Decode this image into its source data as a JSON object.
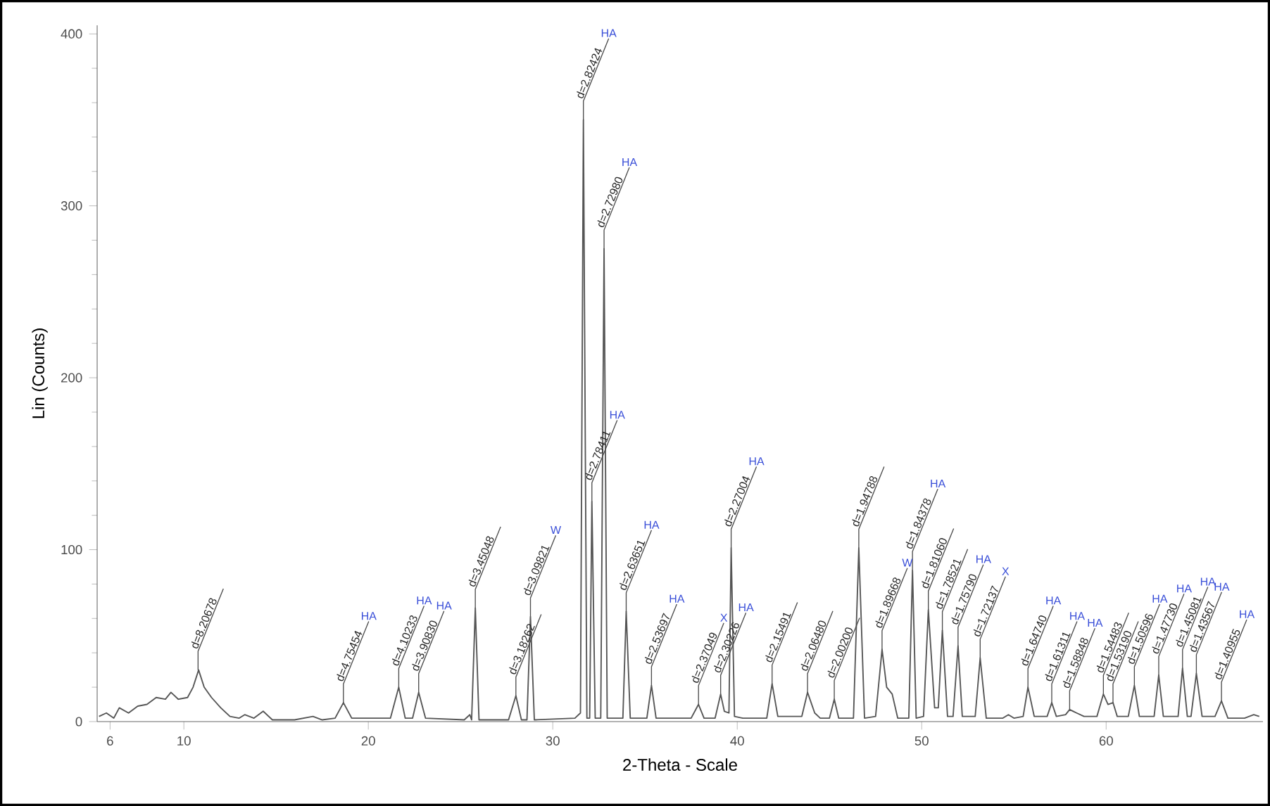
{
  "chart_data": {
    "type": "line",
    "xlabel": "2-Theta - Scale",
    "ylabel": "Lin (Counts)",
    "color": "#555555",
    "xlim": [
      5.3,
      68.5
    ],
    "ylim": [
      0,
      405
    ],
    "xticks": [
      6,
      10,
      20,
      30,
      40,
      50,
      60
    ],
    "yticks": [
      0,
      100,
      200,
      300,
      400
    ],
    "x": [
      5.4,
      5.8,
      6.2,
      6.5,
      7.0,
      7.5,
      8.0,
      8.5,
      9.0,
      9.3,
      9.7,
      10.2,
      10.5,
      10.8,
      11.1,
      11.5,
      12.0,
      12.5,
      13.0,
      13.3,
      13.8,
      14.3,
      14.8,
      16,
      17,
      17.5,
      18.2,
      18.65,
      19.1,
      21.2,
      21.65,
      22.0,
      22.4,
      22.73,
      23.1,
      25.2,
      25.5,
      25.6,
      25.8,
      26.0,
      27.6,
      28.0,
      28.3,
      28.6,
      28.79,
      29.0,
      31.2,
      31.5,
      31.66,
      31.85,
      32.0,
      32.12,
      32.3,
      32.6,
      32.78,
      32.95,
      33.8,
      33.98,
      34.2,
      35.1,
      35.35,
      35.6,
      37.5,
      37.9,
      38.2,
      38.8,
      39.1,
      39.3,
      39.55,
      39.67,
      39.85,
      40.3,
      41.6,
      41.89,
      42.2,
      43.5,
      43.81,
      44.2,
      44.5,
      45.0,
      45.26,
      45.5,
      46.3,
      46.59,
      46.9,
      47.5,
      47.85,
      48.1,
      48.4,
      48.7,
      49.3,
      49.5,
      49.7,
      50.1,
      50.36,
      50.7,
      50.9,
      51.12,
      51.4,
      51.7,
      51.97,
      52.2,
      52.9,
      53.17,
      53.5,
      54.4,
      54.7,
      55.0,
      55.5,
      55.76,
      56.1,
      56.8,
      57.05,
      57.3,
      57.8,
      58.02,
      58.4,
      58.8,
      59.5,
      59.85,
      60.1,
      60.37,
      60.6,
      61.2,
      61.53,
      61.8,
      62.6,
      62.85,
      63.1,
      63.6,
      63.9,
      64.14,
      64.4,
      64.6,
      64.89,
      65.2,
      65.9,
      66.25,
      66.6,
      67.5,
      68.0,
      68.3
    ],
    "values": [
      3,
      5,
      2,
      8,
      5,
      9,
      10,
      14,
      13,
      17,
      13,
      14,
      20,
      30,
      20,
      14,
      8,
      3,
      2,
      4,
      2,
      6,
      1,
      1,
      3,
      1,
      2,
      11,
      2,
      2,
      20,
      2,
      2,
      17,
      2,
      1,
      4,
      1,
      66,
      1,
      1,
      15,
      1,
      1,
      61,
      1,
      2,
      5,
      350,
      2,
      2,
      128,
      2,
      2,
      275,
      2,
      2,
      64,
      2,
      2,
      21,
      2,
      2,
      10,
      2,
      2,
      16,
      6,
      5,
      101,
      3,
      2,
      2,
      22,
      3,
      3,
      17,
      5,
      2,
      2,
      13,
      2,
      2,
      101,
      2,
      3,
      42,
      20,
      16,
      2,
      2,
      88,
      2,
      3,
      65,
      8,
      8,
      53,
      3,
      3,
      44,
      3,
      3,
      37,
      2,
      2,
      4,
      2,
      3,
      20,
      3,
      3,
      11,
      3,
      4,
      7,
      5,
      3,
      3,
      16,
      10,
      11,
      3,
      3,
      21,
      3,
      3,
      27,
      3,
      3,
      3,
      31,
      3,
      3,
      28,
      3,
      3,
      12,
      2,
      2,
      4,
      3
    ],
    "annotations": [
      {
        "text": "d=8.20678",
        "x": 10.77,
        "y": 30
      },
      {
        "text": "d=4.75454",
        "x": 18.65,
        "y": 11
      },
      {
        "text": "HA",
        "x": 18.65,
        "y": 11
      },
      {
        "text": "d=4.10233",
        "x": 21.65,
        "y": 20
      },
      {
        "text": "HA",
        "x": 21.65,
        "y": 20
      },
      {
        "text": "d=3.90830",
        "x": 22.73,
        "y": 17
      },
      {
        "text": "HA",
        "x": 22.73,
        "y": 17
      },
      {
        "text": "d=3.45048",
        "x": 25.8,
        "y": 66
      },
      {
        "text": "d=3.18262",
        "x": 28.0,
        "y": 15
      },
      {
        "text": "d=3.09821",
        "x": 28.79,
        "y": 61
      },
      {
        "text": "W",
        "x": 28.79,
        "y": 61
      },
      {
        "text": "d=2.82424",
        "x": 31.66,
        "y": 350
      },
      {
        "text": "HA",
        "x": 31.66,
        "y": 350
      },
      {
        "text": "d=2.78411",
        "x": 32.12,
        "y": 128
      },
      {
        "text": "HA",
        "x": 32.12,
        "y": 128
      },
      {
        "text": "d=2.72980",
        "x": 32.78,
        "y": 275
      },
      {
        "text": "HA",
        "x": 32.78,
        "y": 275
      },
      {
        "text": "d=2.63651",
        "x": 33.98,
        "y": 64
      },
      {
        "text": "HA",
        "x": 33.98,
        "y": 64
      },
      {
        "text": "d=2.53697",
        "x": 35.35,
        "y": 21
      },
      {
        "text": "HA",
        "x": 35.35,
        "y": 21
      },
      {
        "text": "d=2.37049",
        "x": 37.9,
        "y": 10
      },
      {
        "text": "X",
        "x": 37.9,
        "y": 10
      },
      {
        "text": "d=2.30226",
        "x": 39.1,
        "y": 16
      },
      {
        "text": "HA",
        "x": 39.1,
        "y": 16
      },
      {
        "text": "d=2.27004",
        "x": 39.67,
        "y": 101
      },
      {
        "text": "HA",
        "x": 39.67,
        "y": 101
      },
      {
        "text": "d=2.15491",
        "x": 41.89,
        "y": 22
      },
      {
        "text": "d=2.06480",
        "x": 43.81,
        "y": 17
      },
      {
        "text": "d=2.00200",
        "x": 45.26,
        "y": 13
      },
      {
        "text": "d=1.94788",
        "x": 46.59,
        "y": 101
      },
      {
        "text": "d=1.89668",
        "x": 47.85,
        "y": 42
      },
      {
        "text": "W",
        "x": 47.85,
        "y": 42
      },
      {
        "text": "d=1.84378",
        "x": 49.5,
        "y": 88
      },
      {
        "text": "HA",
        "x": 49.5,
        "y": 88
      },
      {
        "text": "d=1.81060",
        "x": 50.36,
        "y": 65
      },
      {
        "text": "d=1.78521",
        "x": 51.12,
        "y": 53
      },
      {
        "text": "d=1.75790",
        "x": 51.97,
        "y": 44
      },
      {
        "text": "HA",
        "x": 51.97,
        "y": 44
      },
      {
        "text": "d=1.72137",
        "x": 53.17,
        "y": 37
      },
      {
        "text": "X",
        "x": 53.17,
        "y": 37
      },
      {
        "text": "d=1.64740",
        "x": 55.76,
        "y": 20
      },
      {
        "text": "HA",
        "x": 55.76,
        "y": 20
      },
      {
        "text": "d=1.61311",
        "x": 57.05,
        "y": 11
      },
      {
        "text": "HA",
        "x": 57.05,
        "y": 11
      },
      {
        "text": "d=1.58848",
        "x": 58.02,
        "y": 7
      },
      {
        "text": "HA",
        "x": 58.02,
        "y": 7
      },
      {
        "text": "d=1.54483",
        "x": 59.85,
        "y": 16
      },
      {
        "text": "d=1.53190",
        "x": 60.37,
        "y": 11
      },
      {
        "text": "d=1.50596",
        "x": 61.53,
        "y": 21
      },
      {
        "text": "HA",
        "x": 61.53,
        "y": 21
      },
      {
        "text": "d=1.47730",
        "x": 62.85,
        "y": 27
      },
      {
        "text": "HA",
        "x": 62.85,
        "y": 27
      },
      {
        "text": "d=1.45081",
        "x": 64.14,
        "y": 31
      },
      {
        "text": "HA",
        "x": 64.14,
        "y": 31
      },
      {
        "text": "d=1.43567",
        "x": 64.89,
        "y": 28
      },
      {
        "text": "HA",
        "x": 64.89,
        "y": 28
      },
      {
        "text": "d=1.40955",
        "x": 66.25,
        "y": 12
      },
      {
        "text": "HA",
        "x": 66.25,
        "y": 12
      }
    ]
  }
}
